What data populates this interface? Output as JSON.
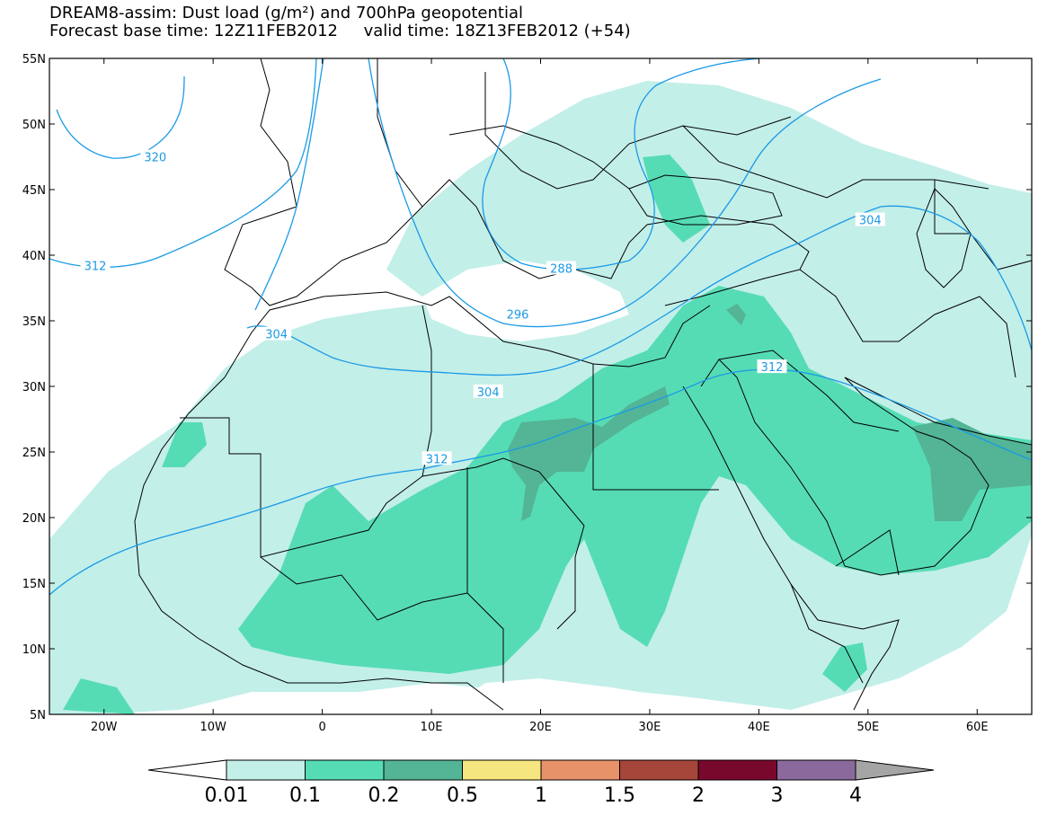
{
  "header": {
    "title_line1": "DREAM8-assim: Dust load (g/m²) and 700hPa geopotential",
    "title_line2": "Forecast base time: 12Z11FEB2012     valid time: 18Z13FEB2012 (+54)"
  },
  "map": {
    "lon_range": [
      -25,
      65
    ],
    "lat_range": [
      5,
      55
    ],
    "lat_ticks": [
      {
        "value": 55,
        "label": "55N"
      },
      {
        "value": 50,
        "label": "50N"
      },
      {
        "value": 45,
        "label": "45N"
      },
      {
        "value": 40,
        "label": "40N"
      },
      {
        "value": 35,
        "label": "35N"
      },
      {
        "value": 30,
        "label": "30N"
      },
      {
        "value": 25,
        "label": "25N"
      },
      {
        "value": 20,
        "label": "20N"
      },
      {
        "value": 15,
        "label": "15N"
      },
      {
        "value": 10,
        "label": "10N"
      },
      {
        "value": 5,
        "label": "5N"
      }
    ],
    "lon_ticks": [
      {
        "value": -20,
        "label": "20W"
      },
      {
        "value": -10,
        "label": "10W"
      },
      {
        "value": 0,
        "label": "0"
      },
      {
        "value": 10,
        "label": "10E"
      },
      {
        "value": 20,
        "label": "20E"
      },
      {
        "value": 30,
        "label": "30E"
      },
      {
        "value": 40,
        "label": "40E"
      },
      {
        "value": 50,
        "label": "50E"
      },
      {
        "value": 60,
        "label": "60E"
      }
    ],
    "colors": {
      "contour": "#1a9ae6",
      "border": "#000000"
    },
    "contour_labels": [
      {
        "text": "320",
        "lon": -15.3,
        "lat": 47.5
      },
      {
        "text": "312",
        "lon": -20.8,
        "lat": 39.2
      },
      {
        "text": "312",
        "lon": 10.5,
        "lat": 24.5
      },
      {
        "text": "312",
        "lon": 41.2,
        "lat": 31.5
      },
      {
        "text": "304",
        "lon": -4.2,
        "lat": 34.0
      },
      {
        "text": "304",
        "lon": 15.2,
        "lat": 29.6
      },
      {
        "text": "304",
        "lon": 50.2,
        "lat": 42.7
      },
      {
        "text": "296",
        "lon": 17.9,
        "lat": 35.5
      },
      {
        "text": "288",
        "lon": 21.9,
        "lat": 39.0
      }
    ]
  },
  "legend": {
    "labels": [
      "0.01",
      "0.1",
      "0.2",
      "0.5",
      "1",
      "1.5",
      "2",
      "3",
      "4"
    ],
    "colors": [
      "#ffffff",
      "#c3efe9",
      "#56dcb4",
      "#53b595",
      "#f5e67f",
      "#e8926a",
      "#a6453a",
      "#79082d",
      "#8a6a9c",
      "#a5a5a5"
    ]
  }
}
